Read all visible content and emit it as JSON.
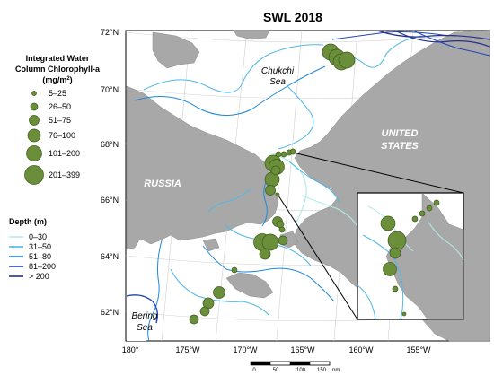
{
  "title": "SWL 2018",
  "legend_size": {
    "title_lines": [
      "Integrated Water",
      "Column Chlorophyll-a"
    ],
    "unit_prefix": "(mg/m",
    "unit_sup": "2",
    "unit_suffix": ")",
    "classes": [
      {
        "label": "5–25"
      },
      {
        "label": "26–50"
      },
      {
        "label": "51–75"
      },
      {
        "label": "76–100"
      },
      {
        "label": "101–200"
      },
      {
        "label": "201–399"
      }
    ]
  },
  "legend_depth": {
    "title": "Depth (m)",
    "classes": [
      {
        "label": "0–30",
        "color": "#b3ecec"
      },
      {
        "label": "31–50",
        "color": "#4fb8e6"
      },
      {
        "label": "51–80",
        "color": "#1e88d8"
      },
      {
        "label": "81–200",
        "color": "#1f45b8"
      },
      {
        "label": "> 200",
        "color": "#232f8a"
      }
    ]
  },
  "lat_labels": [
    "72°N",
    "70°N",
    "68°N",
    "66°N",
    "64°N",
    "62°N"
  ],
  "lon_labels": [
    "180°",
    "175°W",
    "170°W",
    "165°W",
    "160°W",
    "155°W"
  ],
  "place_labels": {
    "chukchi": [
      "Chukchi",
      "Sea"
    ],
    "russia": "RUSSIA",
    "us": [
      "UNITED",
      "STATES"
    ],
    "bering": [
      "Bering",
      "Sea"
    ]
  },
  "scale_bar": {
    "ticks": [
      "0",
      "50",
      "100",
      "150"
    ],
    "unit": "nm"
  },
  "colors": {
    "land": "#a8a8a8",
    "marker": "#6b8e3a",
    "marker_edge": "#3c5a1e"
  },
  "icons": [
    "inset-zoom-box"
  ]
}
